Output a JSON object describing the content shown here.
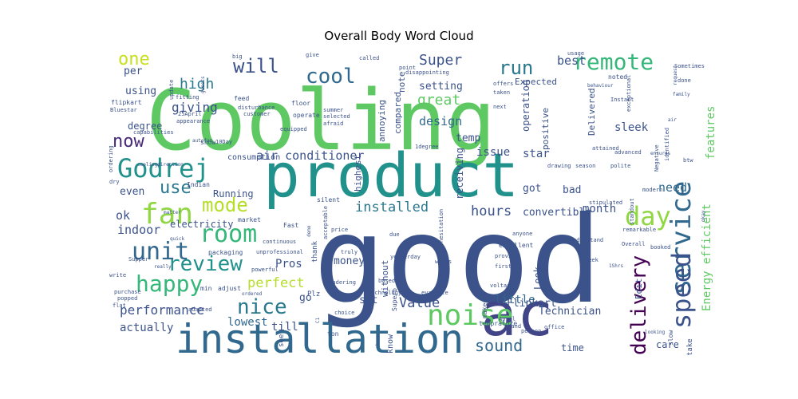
{
  "chart_data": {
    "type": "wordcloud",
    "title": "Overall Body Word Cloud",
    "words": [
      {
        "text": "Cooling",
        "weight": 100,
        "color": "#5ec962"
      },
      {
        "text": "good",
        "weight": 98,
        "color": "#3b528b"
      },
      {
        "text": "product",
        "weight": 72,
        "color": "#21918c"
      },
      {
        "text": "installation",
        "weight": 58,
        "color": "#31688e"
      },
      {
        "text": "ac",
        "weight": 52,
        "color": "#414487"
      },
      {
        "text": "noise",
        "weight": 34,
        "color": "#5ec962"
      },
      {
        "text": "service",
        "weight": 32,
        "color": "#31688e"
      },
      {
        "text": "Godrej",
        "weight": 30,
        "color": "#21918c"
      },
      {
        "text": "speed",
        "weight": 30,
        "color": "#3b528b"
      },
      {
        "text": "day",
        "weight": 30,
        "color": "#90d743"
      },
      {
        "text": "fan",
        "weight": 30,
        "color": "#90d743"
      },
      {
        "text": "room",
        "weight": 30,
        "color": "#35b779"
      },
      {
        "text": "happy",
        "weight": 30,
        "color": "#35b779"
      },
      {
        "text": "review",
        "weight": 28,
        "color": "#21918c"
      },
      {
        "text": "remote",
        "weight": 28,
        "color": "#35b779"
      },
      {
        "text": "unit",
        "weight": 28,
        "color": "#31688e"
      },
      {
        "text": "delivery",
        "weight": 26,
        "color": "#440154"
      },
      {
        "text": "nice",
        "weight": 24,
        "color": "#2a788e"
      },
      {
        "text": "cool",
        "weight": 24,
        "color": "#31688e"
      },
      {
        "text": "will",
        "weight": 24,
        "color": "#3b528b"
      },
      {
        "text": "mode",
        "weight": 24,
        "color": "#b5de2b"
      },
      {
        "text": "now",
        "weight": 22,
        "color": "#482878"
      },
      {
        "text": "use",
        "weight": 22,
        "color": "#2a788e"
      },
      {
        "text": "one",
        "weight": 22,
        "color": "#c8e020"
      },
      {
        "text": "run",
        "weight": 22,
        "color": "#2a788e"
      },
      {
        "text": "sound",
        "weight": 20,
        "color": "#31688e"
      },
      {
        "text": "perfect",
        "weight": 18,
        "color": "#b5de2b"
      },
      {
        "text": "great",
        "weight": 18,
        "color": "#5ec962"
      },
      {
        "text": "high",
        "weight": 16,
        "color": "#2a788e"
      },
      {
        "text": "Super",
        "weight": 16,
        "color": "#3b528b"
      },
      {
        "text": "performance",
        "weight": 15,
        "color": "#3b528b"
      },
      {
        "text": "installed",
        "weight": 15,
        "color": "#2a788e"
      },
      {
        "text": "hours",
        "weight": 15,
        "color": "#3b528b"
      },
      {
        "text": "Value",
        "weight": 15,
        "color": "#3b528b"
      },
      {
        "text": "air conditioner",
        "weight": 14,
        "color": "#3b528b"
      },
      {
        "text": "giving",
        "weight": 14,
        "color": "#3b528b"
      },
      {
        "text": "design",
        "weight": 14,
        "color": "#31688e"
      },
      {
        "text": "features",
        "weight": 14,
        "color": "#5ec962"
      },
      {
        "text": "Energy efficient",
        "weight": 13,
        "color": "#5ec962"
      },
      {
        "text": "need",
        "weight": 14,
        "color": "#31688e"
      },
      {
        "text": "ok",
        "weight": 14,
        "color": "#3b528b"
      },
      {
        "text": "indoor",
        "weight": 14,
        "color": "#3b528b"
      },
      {
        "text": "actually",
        "weight": 13,
        "color": "#3b528b"
      },
      {
        "text": "lowest",
        "weight": 13,
        "color": "#31688e"
      },
      {
        "text": "till",
        "weight": 13,
        "color": "#3b528b"
      },
      {
        "text": "little",
        "weight": 13,
        "color": "#31688e"
      },
      {
        "text": "Pros",
        "weight": 13,
        "color": "#3b528b"
      },
      {
        "text": "star",
        "weight": 13,
        "color": "#3b528b"
      },
      {
        "text": "best",
        "weight": 13,
        "color": "#3b528b"
      },
      {
        "text": "sleek",
        "weight": 13,
        "color": "#3b528b"
      },
      {
        "text": "month",
        "weight": 13,
        "color": "#3b528b"
      },
      {
        "text": "convertible",
        "weight": 12,
        "color": "#3b528b"
      },
      {
        "text": "money",
        "weight": 12,
        "color": "#3b528b"
      },
      {
        "text": "bad",
        "weight": 12,
        "color": "#3b528b"
      },
      {
        "text": "got",
        "weight": 12,
        "color": "#3b528b"
      },
      {
        "text": "even",
        "weight": 12,
        "color": "#3b528b"
      },
      {
        "text": "time",
        "weight": 12,
        "color": "#3b528b"
      },
      {
        "text": "Flipkart",
        "weight": 12,
        "color": "#3b528b"
      },
      {
        "text": "Technician",
        "weight": 12,
        "color": "#3b528b"
      },
      {
        "text": "set",
        "weight": 12,
        "color": "#3b528b"
      },
      {
        "text": "go",
        "weight": 12,
        "color": "#3b528b"
      },
      {
        "text": "per",
        "weight": 12,
        "color": "#3b528b"
      },
      {
        "text": "using",
        "weight": 12,
        "color": "#3b528b"
      },
      {
        "text": "setting",
        "weight": 12,
        "color": "#3b528b"
      },
      {
        "text": "temp",
        "weight": 12,
        "color": "#3b528b"
      },
      {
        "text": "issue",
        "weight": 12,
        "color": "#3b528b"
      },
      {
        "text": "care",
        "weight": 12,
        "color": "#3b528b"
      },
      {
        "text": "degree",
        "weight": 12,
        "color": "#3b528b"
      },
      {
        "text": "Running",
        "weight": 11,
        "color": "#3b528b"
      },
      {
        "text": "electricity",
        "weight": 10,
        "color": "#3b528b"
      },
      {
        "text": "Edit",
        "weight": 11,
        "color": "#3b528b"
      },
      {
        "text": "Look",
        "weight": 10,
        "color": "#3b528b"
      },
      {
        "text": "compared",
        "weight": 10,
        "color": "#3b528b"
      },
      {
        "text": "note",
        "weight": 10,
        "color": "#3b528b"
      },
      {
        "text": "positive",
        "weight": 10,
        "color": "#3b528b"
      },
      {
        "text": "operation",
        "weight": 10,
        "color": "#3b528b"
      },
      {
        "text": "Delivered",
        "weight": 9,
        "color": "#3b528b"
      },
      {
        "text": "Expected",
        "weight": 10,
        "color": "#3b528b"
      },
      {
        "text": "highest",
        "weight": 10,
        "color": "#3b528b"
      },
      {
        "text": "receiving",
        "weight": 10,
        "color": "#3b528b"
      },
      {
        "text": "annoying",
        "weight": 10,
        "color": "#3b528b"
      },
      {
        "text": "without",
        "weight": 10,
        "color": "#3b528b"
      },
      {
        "text": "consumption",
        "weight": 10,
        "color": "#3b528b"
      },
      {
        "text": "know",
        "weight": 10,
        "color": "#3b528b"
      },
      {
        "text": "ton",
        "weight": 10,
        "color": "#3b528b"
      },
      {
        "text": "thank",
        "weight": 9,
        "color": "#3b528b"
      },
      {
        "text": "Plz",
        "weight": 10,
        "color": "#3b528b"
      },
      {
        "text": "see",
        "weight": 10,
        "color": "#3b528b"
      },
      {
        "text": "take",
        "weight": 9,
        "color": "#3b528b"
      },
      {
        "text": "slow",
        "weight": 8,
        "color": "#3b528b"
      },
      {
        "text": "Fast",
        "weight": 8,
        "color": "#3b528b"
      },
      {
        "text": "Superb",
        "weight": 8,
        "color": "#3b528b"
      },
      {
        "text": "temprature",
        "weight": 8,
        "color": "#3b528b"
      },
      {
        "text": "makes",
        "weight": 8,
        "color": "#3b528b"
      },
      {
        "text": "excellent",
        "weight": 8,
        "color": "#3b528b"
      },
      {
        "text": "silent",
        "weight": 8,
        "color": "#3b528b"
      },
      {
        "text": "adjust",
        "weight": 8,
        "color": "#3b528b"
      },
      {
        "text": "packaging",
        "weight": 8,
        "color": "#3b528b"
      },
      {
        "text": "min",
        "weight": 8,
        "color": "#3b528b"
      },
      {
        "text": "market",
        "weight": 8,
        "color": "#3b528b"
      },
      {
        "text": "Indian",
        "weight": 7,
        "color": "#3b528b"
      },
      {
        "text": "show",
        "weight": 7,
        "color": "#3b528b"
      },
      {
        "text": "operate",
        "weight": 7,
        "color": "#3b528b"
      },
      {
        "text": "equipped",
        "weight": 7,
        "color": "#3b528b"
      },
      {
        "text": "floor",
        "weight": 8,
        "color": "#3b528b"
      },
      {
        "text": "feed",
        "weight": 7,
        "color": "#3b528b"
      },
      {
        "text": "big",
        "weight": 8,
        "color": "#3b528b"
      },
      {
        "text": "fitting",
        "weight": 7,
        "color": "#3b528b"
      },
      {
        "text": "update",
        "weight": 7,
        "color": "#3b528b"
      },
      {
        "text": "flipkart",
        "weight": 7,
        "color": "#3b528b"
      },
      {
        "text": "Bluestar",
        "weight": 7,
        "color": "#3b528b"
      },
      {
        "text": "25April",
        "weight": 6,
        "color": "#3b528b"
      },
      {
        "text": "appearance",
        "weight": 7,
        "color": "#3b528b"
      },
      {
        "text": "disturbance",
        "weight": 7,
        "color": "#3b528b"
      },
      {
        "text": "customer",
        "weight": 7,
        "color": "#3b528b"
      },
      {
        "text": "summer",
        "weight": 7,
        "color": "#3b528b"
      },
      {
        "text": "selected",
        "weight": 7,
        "color": "#3b528b"
      },
      {
        "text": "afraid",
        "weight": 7,
        "color": "#3b528b"
      },
      {
        "text": "called",
        "weight": 7,
        "color": "#3b528b"
      },
      {
        "text": "point",
        "weight": 7,
        "color": "#3b528b"
      },
      {
        "text": "disappointing",
        "weight": 7,
        "color": "#3b528b"
      },
      {
        "text": "offers",
        "weight": 7,
        "color": "#3b528b"
      },
      {
        "text": "taken",
        "weight": 7,
        "color": "#3b528b"
      },
      {
        "text": "next",
        "weight": 7,
        "color": "#3b528b"
      },
      {
        "text": "usage",
        "weight": 7,
        "color": "#3b528b"
      },
      {
        "text": "noted",
        "weight": 7,
        "color": "#3b528b"
      },
      {
        "text": "give",
        "weight": 8,
        "color": "#3b528b"
      },
      {
        "text": "Sometimes",
        "weight": 7,
        "color": "#3b528b"
      },
      {
        "text": "done",
        "weight": 7,
        "color": "#3b528b"
      },
      {
        "text": "Instant",
        "weight": 7,
        "color": "#3b528b"
      },
      {
        "text": "btw",
        "weight": 6,
        "color": "#3b528b"
      },
      {
        "text": "season",
        "weight": 7,
        "color": "#3b528b"
      },
      {
        "text": "polite",
        "weight": 7,
        "color": "#3b528b"
      },
      {
        "text": "modern",
        "weight": 7,
        "color": "#3b528b"
      },
      {
        "text": "advanced",
        "weight": 7,
        "color": "#3b528b"
      },
      {
        "text": "attained",
        "weight": 7,
        "color": "#3b528b"
      },
      {
        "text": "drawing",
        "weight": 7,
        "color": "#3b528b"
      },
      {
        "text": "stipulated",
        "weight": 7,
        "color": "#3b528b"
      },
      {
        "text": "understand",
        "weight": 7,
        "color": "#3b528b"
      },
      {
        "text": "remarkable",
        "weight": 7,
        "color": "#3b528b"
      },
      {
        "text": "booked",
        "weight": 7,
        "color": "#3b528b"
      },
      {
        "text": "Overall",
        "weight": 7,
        "color": "#3b528b"
      },
      {
        "text": "week",
        "weight": 7,
        "color": "#3b528b"
      },
      {
        "text": "first",
        "weight": 7,
        "color": "#3b528b"
      },
      {
        "text": "provide",
        "weight": 7,
        "color": "#3b528b"
      },
      {
        "text": "anyone",
        "weight": 7,
        "color": "#3b528b"
      },
      {
        "text": "voltas",
        "weight": 7,
        "color": "#3b528b"
      },
      {
        "text": "evaluate",
        "weight": 7,
        "color": "#3b528b"
      },
      {
        "text": "wondering",
        "weight": 7,
        "color": "#3b528b"
      },
      {
        "text": "unprofessional",
        "weight": 7,
        "color": "#3b528b"
      },
      {
        "text": "continuous",
        "weight": 7,
        "color": "#3b528b"
      },
      {
        "text": "quick",
        "weight": 7,
        "color": "#3b528b"
      },
      {
        "text": "powerful",
        "weight": 7,
        "color": "#3b528b"
      },
      {
        "text": "truly",
        "weight": 7,
        "color": "#3b528b"
      },
      {
        "text": "technology",
        "weight": 7,
        "color": "#3b528b"
      },
      {
        "text": "based",
        "weight": 7,
        "color": "#3b528b"
      },
      {
        "text": "choice",
        "weight": 7,
        "color": "#3b528b"
      },
      {
        "text": "April",
        "weight": 7,
        "color": "#3b528b"
      },
      {
        "text": "person",
        "weight": 7,
        "color": "#3b528b"
      },
      {
        "text": "brand",
        "weight": 7,
        "color": "#3b528b"
      },
      {
        "text": "office",
        "weight": 7,
        "color": "#3b528b"
      },
      {
        "text": "purchase",
        "weight": 7,
        "color": "#3b528b"
      },
      {
        "text": "popped",
        "weight": 7,
        "color": "#3b528b"
      },
      {
        "text": "adapted",
        "weight": 7,
        "color": "#3b528b"
      },
      {
        "text": "flat",
        "weight": 7,
        "color": "#3b528b"
      },
      {
        "text": "write",
        "weight": 7,
        "color": "#3b528b"
      },
      {
        "text": "really",
        "weight": 7,
        "color": "#3b528b"
      },
      {
        "text": "Supper",
        "weight": 6,
        "color": "#3b528b"
      },
      {
        "text": "matter",
        "weight": 7,
        "color": "#3b528b"
      },
      {
        "text": "dry",
        "weight": 6,
        "color": "#3b528b"
      },
      {
        "text": "ordering",
        "weight": 7,
        "color": "#3b528b"
      },
      {
        "text": "capabilities",
        "weight": 7,
        "color": "#3b528b"
      },
      {
        "text": "yesterday",
        "weight": 7,
        "color": "#3b528b"
      },
      {
        "text": "works",
        "weight": 7,
        "color": "#3b528b"
      },
      {
        "text": "due",
        "weight": 7,
        "color": "#3b528b"
      },
      {
        "text": "price",
        "weight": 7,
        "color": "#3b528b"
      },
      {
        "text": "acceptable",
        "weight": 7,
        "color": "#3b528b"
      },
      {
        "text": "hesitation",
        "weight": 7,
        "color": "#3b528b"
      },
      {
        "text": "standout",
        "weight": 7,
        "color": "#3b528b"
      },
      {
        "text": "exceptional",
        "weight": 7,
        "color": "#3b528b"
      },
      {
        "text": "Negative",
        "weight": 7,
        "color": "#3b528b"
      },
      {
        "text": "identified",
        "weight": 7,
        "color": "#3b528b"
      },
      {
        "text": "request",
        "weight": 7,
        "color": "#3b528b"
      },
      {
        "text": "family",
        "weight": 6,
        "color": "#3b528b"
      },
      {
        "text": "looking",
        "weight": 6,
        "color": "#3b528b"
      },
      {
        "text": "okay",
        "weight": 6,
        "color": "#3b528b"
      },
      {
        "text": "guests",
        "weight": 6,
        "color": "#3b528b"
      },
      {
        "text": "autofan",
        "weight": 6,
        "color": "#3b528b"
      },
      {
        "text": "ensures",
        "weight": 6,
        "color": "#3b528b"
      },
      {
        "text": "behaviour",
        "weight": 6,
        "color": "#3b528b"
      },
      {
        "text": "1Shrs",
        "weight": 6,
        "color": "#3b528b"
      },
      {
        "text": "10Day",
        "weight": 6,
        "color": "#3b528b"
      },
      {
        "text": "C1",
        "weight": 7,
        "color": "#3b528b"
      },
      {
        "text": "ordered",
        "weight": 6,
        "color": "#3b528b"
      },
      {
        "text": "home",
        "weight": 6,
        "color": "#3b528b"
      },
      {
        "text": "coolingdirection",
        "weight": 6,
        "color": "#3b528b"
      },
      {
        "text": "1degree",
        "weight": 6,
        "color": "#3b528b"
      },
      {
        "text": "air",
        "weight": 7,
        "color": "#3b528b"
      },
      {
        "text": "demo",
        "weight": 6,
        "color": "#3b528b"
      }
    ]
  }
}
